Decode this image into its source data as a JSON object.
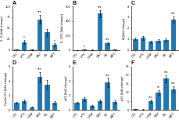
{
  "chart_data": [
    {
      "type": "bar",
      "title": "A",
      "ylabel": "IL-6 (fold change)",
      "categories": [
        "CTL",
        "LPS",
        "USM",
        "CAJ",
        "SIL",
        "MET"
      ],
      "values": [
        1.0,
        18.0,
        0.5,
        70.0,
        40.0,
        12.0
      ],
      "errors": [
        0.5,
        5.0,
        0.3,
        10.0,
        8.0,
        3.0
      ],
      "annotations": [
        {
          "category": "LPS",
          "text": "*"
        },
        {
          "category": "CAJ",
          "text": "***"
        },
        {
          "category": "MET",
          "text": "*"
        }
      ],
      "ylim": [
        0,
        100
      ],
      "yticks": [
        0,
        25,
        50,
        75,
        100
      ]
    },
    {
      "type": "bar",
      "title": "B",
      "ylabel": "IL-1R2 (fold change)",
      "categories": [
        "CTL",
        "LPS",
        "USM",
        "CAJ",
        "SIL",
        "MET"
      ],
      "values": [
        1.0,
        5.0,
        2.0,
        500.0,
        90.0,
        3.0
      ],
      "errors": [
        0.3,
        1.5,
        0.5,
        45.0,
        18.0,
        0.5
      ],
      "annotations": [
        {
          "category": "LPS",
          "text": "*"
        },
        {
          "category": "CAJ",
          "text": "***"
        },
        {
          "category": "SIL",
          "text": "***"
        }
      ],
      "ylim": [
        0,
        600
      ],
      "yticks": [
        0,
        200,
        400,
        600
      ]
    },
    {
      "type": "bar",
      "title": "C",
      "ylabel": "A (fold change)",
      "categories": [
        "CTL",
        "LPS",
        "USM",
        "CAJ",
        "SIL",
        "MET"
      ],
      "values": [
        1.0,
        1.1,
        0.75,
        0.85,
        0.9,
        2.8
      ],
      "errors": [
        0.1,
        0.15,
        0.1,
        0.12,
        0.15,
        0.3
      ],
      "annotations": [
        {
          "category": "MET",
          "text": "***"
        }
      ],
      "ylim": [
        0,
        4
      ],
      "yticks": [
        0,
        1,
        2,
        3,
        4
      ]
    },
    {
      "type": "bar",
      "title": "D",
      "ylabel": "Cyclin D1 (fold change)",
      "categories": [
        "CTL",
        "LPS",
        "USM",
        "CAJ",
        "SIL",
        "MET"
      ],
      "values": [
        1.0,
        1.2,
        0.4,
        4.5,
        3.5,
        1.0
      ],
      "errors": [
        0.15,
        0.2,
        0.1,
        0.7,
        0.6,
        0.2
      ],
      "annotations": [
        {
          "category": "CAJ",
          "text": "***"
        }
      ],
      "ylim": [
        0,
        6
      ],
      "yticks": [
        0,
        2,
        4,
        6
      ]
    },
    {
      "type": "bar",
      "title": "E",
      "ylabel": "p66 (fold change)",
      "categories": [
        "CTL",
        "LPS",
        "USM",
        "CAJ",
        "SIL",
        "MET"
      ],
      "values": [
        1.0,
        1.5,
        0.6,
        1.2,
        3.8,
        1.1
      ],
      "errors": [
        0.15,
        0.25,
        0.1,
        0.2,
        0.6,
        0.2
      ],
      "annotations": [
        {
          "category": "SIL",
          "text": "***"
        }
      ],
      "ylim": [
        0,
        6
      ],
      "yticks": [
        0,
        2,
        4,
        6
      ]
    },
    {
      "type": "bar",
      "title": "F",
      "ylabel": "p21 (fold change)",
      "categories": [
        "CTL",
        "LPS",
        "USM",
        "CAJ",
        "SIL",
        "MET"
      ],
      "values": [
        0.5,
        0.3,
        5.0,
        10.0,
        18.0,
        12.0
      ],
      "errors": [
        0.1,
        0.05,
        0.8,
        1.5,
        2.0,
        1.5
      ],
      "annotations": [
        {
          "category": "USM",
          "text": "***"
        },
        {
          "category": "CAJ",
          "text": "**"
        },
        {
          "category": "SIL",
          "text": "***"
        },
        {
          "category": "MET",
          "text": "***"
        }
      ],
      "ylim": [
        0,
        25
      ],
      "yticks": [
        0,
        5,
        10,
        15,
        20,
        25
      ]
    }
  ]
}
